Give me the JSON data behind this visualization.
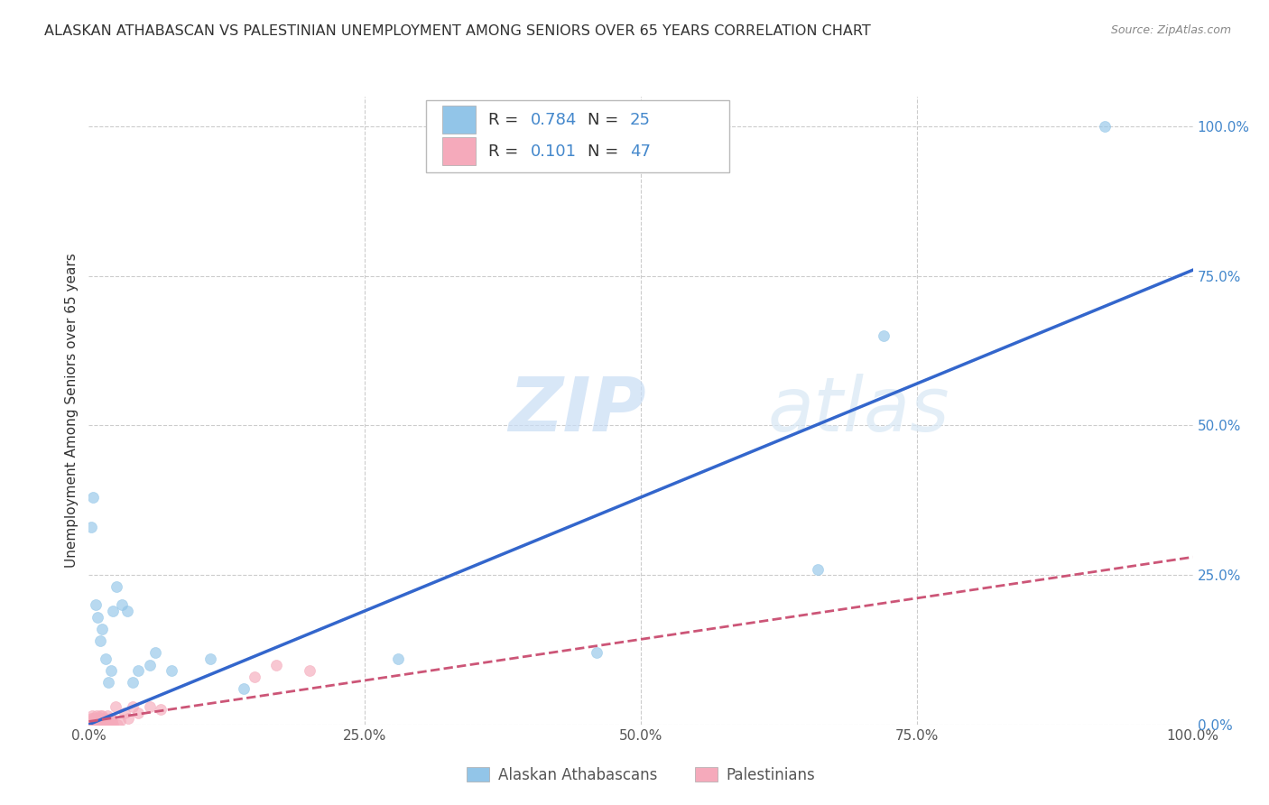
{
  "title": "ALASKAN ATHABASCAN VS PALESTINIAN UNEMPLOYMENT AMONG SENIORS OVER 65 YEARS CORRELATION CHART",
  "source": "Source: ZipAtlas.com",
  "ylabel": "Unemployment Among Seniors over 65 years",
  "watermark": "ZIPatlas",
  "blue_R": 0.784,
  "blue_N": 25,
  "pink_R": 0.101,
  "pink_N": 47,
  "legend_label_blue": "Alaskan Athabascans",
  "legend_label_pink": "Palestinians",
  "blue_color": "#92c5e8",
  "pink_color": "#f5aabb",
  "blue_line_color": "#3366cc",
  "pink_line_color": "#cc5577",
  "blue_points": [
    [
      0.002,
      0.33
    ],
    [
      0.004,
      0.38
    ],
    [
      0.006,
      0.2
    ],
    [
      0.008,
      0.18
    ],
    [
      0.01,
      0.14
    ],
    [
      0.012,
      0.16
    ],
    [
      0.015,
      0.11
    ],
    [
      0.018,
      0.07
    ],
    [
      0.02,
      0.09
    ],
    [
      0.022,
      0.19
    ],
    [
      0.025,
      0.23
    ],
    [
      0.03,
      0.2
    ],
    [
      0.035,
      0.19
    ],
    [
      0.04,
      0.07
    ],
    [
      0.045,
      0.09
    ],
    [
      0.055,
      0.1
    ],
    [
      0.06,
      0.12
    ],
    [
      0.075,
      0.09
    ],
    [
      0.11,
      0.11
    ],
    [
      0.14,
      0.06
    ],
    [
      0.28,
      0.11
    ],
    [
      0.46,
      0.12
    ],
    [
      0.66,
      0.26
    ],
    [
      0.72,
      0.65
    ],
    [
      0.92,
      1.0
    ]
  ],
  "pink_points": [
    [
      0.0,
      0.0
    ],
    [
      0.001,
      0.0
    ],
    [
      0.001,
      0.005
    ],
    [
      0.002,
      0.01
    ],
    [
      0.002,
      0.0
    ],
    [
      0.003,
      0.005
    ],
    [
      0.003,
      0.015
    ],
    [
      0.004,
      0.0
    ],
    [
      0.004,
      0.01
    ],
    [
      0.005,
      0.0
    ],
    [
      0.005,
      0.005
    ],
    [
      0.006,
      0.0
    ],
    [
      0.006,
      0.01
    ],
    [
      0.007,
      0.005
    ],
    [
      0.007,
      0.015
    ],
    [
      0.008,
      0.0
    ],
    [
      0.008,
      0.005
    ],
    [
      0.009,
      0.01
    ],
    [
      0.009,
      0.0
    ],
    [
      0.01,
      0.015
    ],
    [
      0.01,
      0.005
    ],
    [
      0.011,
      0.01
    ],
    [
      0.011,
      0.0
    ],
    [
      0.012,
      0.005
    ],
    [
      0.012,
      0.015
    ],
    [
      0.013,
      0.0
    ],
    [
      0.014,
      0.01
    ],
    [
      0.015,
      0.005
    ],
    [
      0.016,
      0.0
    ],
    [
      0.017,
      0.015
    ],
    [
      0.018,
      0.005
    ],
    [
      0.019,
      0.0
    ],
    [
      0.02,
      0.01
    ],
    [
      0.021,
      0.005
    ],
    [
      0.022,
      0.0
    ],
    [
      0.024,
      0.03
    ],
    [
      0.026,
      0.0
    ],
    [
      0.028,
      0.005
    ],
    [
      0.032,
      0.02
    ],
    [
      0.036,
      0.01
    ],
    [
      0.04,
      0.03
    ],
    [
      0.045,
      0.02
    ],
    [
      0.055,
      0.03
    ],
    [
      0.065,
      0.025
    ],
    [
      0.15,
      0.08
    ],
    [
      0.17,
      0.1
    ],
    [
      0.2,
      0.09
    ]
  ],
  "blue_line": [
    [
      0.0,
      0.0
    ],
    [
      1.0,
      0.76
    ]
  ],
  "pink_line": [
    [
      0.0,
      0.005
    ],
    [
      1.0,
      0.28
    ]
  ],
  "xlim": [
    0,
    1.0
  ],
  "ylim": [
    0,
    1.05
  ],
  "xtick_positions": [
    0.0,
    0.25,
    0.5,
    0.75,
    1.0
  ],
  "xtick_labels": [
    "0.0%",
    "25.0%",
    "50.0%",
    "75.0%",
    "100.0%"
  ],
  "ytick_positions": [
    0.0,
    0.25,
    0.5,
    0.75,
    1.0
  ],
  "ytick_labels_right": [
    "0.0%",
    "25.0%",
    "50.0%",
    "75.0%",
    "100.0%"
  ],
  "grid_color": "#cccccc",
  "background_color": "#ffffff",
  "dot_size": 75,
  "dot_alpha": 0.65
}
